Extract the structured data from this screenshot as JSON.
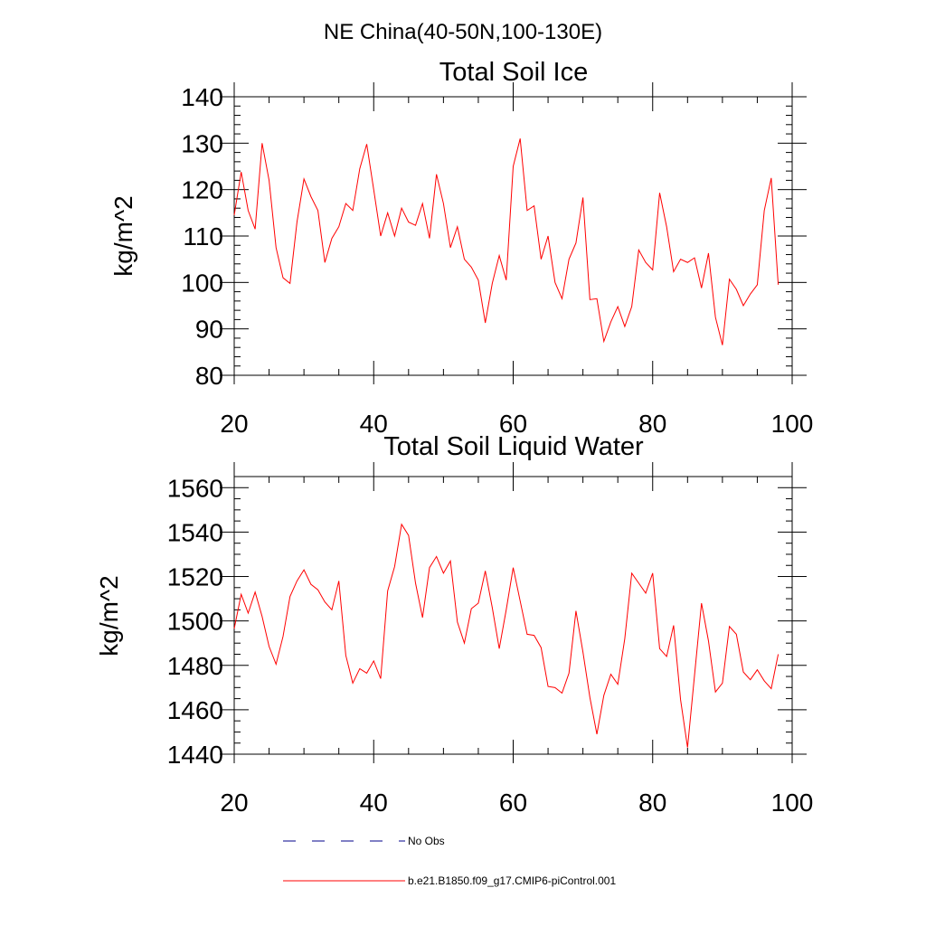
{
  "figure_title": "NE China(40-50N,100-130E)",
  "colors": {
    "model": "#ff0000",
    "obs": "#00008b",
    "axis": "#000000"
  },
  "legend": [
    {
      "label": "No Obs",
      "style": "dashed",
      "color": "#00008b"
    },
    {
      "label": "b.e21.B1850.f09_g17.CMIP6-piControl.001",
      "style": "solid",
      "color": "#ff0000"
    }
  ],
  "chart_data": [
    {
      "type": "line",
      "title": "Total Soil Ice",
      "xlabel": "",
      "ylabel": "kg/m^2",
      "xlim": [
        20,
        100
      ],
      "ylim": [
        80,
        140
      ],
      "xticks": [
        20,
        40,
        60,
        80,
        100
      ],
      "yticks": [
        80,
        90,
        100,
        110,
        120,
        130,
        140
      ],
      "x_minor_step": 5,
      "y_minor_step": 2,
      "series": [
        {
          "name": "b.e21.B1850.f09_g17.CMIP6-piControl.001",
          "x_start": 20,
          "x_step": 1,
          "values": [
            114.5,
            123.8,
            115.5,
            111.5,
            130.0,
            122.0,
            107.5,
            101.0,
            99.8,
            113.0,
            122.3,
            118.5,
            115.5,
            104.3,
            109.5,
            112.0,
            117.0,
            115.5,
            124.5,
            129.8,
            120.0,
            110.0,
            115.0,
            110.0,
            116.0,
            113.0,
            112.3,
            117.0,
            109.5,
            123.3,
            117.0,
            107.5,
            112.0,
            105.0,
            103.3,
            100.5,
            91.3,
            99.8,
            105.8,
            100.5,
            125.0,
            131.0,
            115.5,
            116.5,
            105.0,
            110.0,
            100.0,
            96.5,
            105.0,
            108.5,
            118.3,
            96.3,
            96.5,
            87.3,
            91.5,
            94.8,
            90.5,
            94.8,
            107.0,
            104.3,
            102.7,
            119.3,
            112.0,
            102.3,
            105.0,
            104.3,
            105.3,
            98.8,
            106.3,
            92.5,
            86.5,
            100.7,
            98.5,
            95.0,
            97.5,
            99.5,
            115.5,
            122.5,
            99.5
          ]
        }
      ]
    },
    {
      "type": "line",
      "title": "Total Soil Liquid Water",
      "xlabel": "",
      "ylabel": "kg/m^2",
      "xlim": [
        20,
        100
      ],
      "ylim": [
        1440,
        1565
      ],
      "xticks": [
        20,
        40,
        60,
        80,
        100
      ],
      "yticks": [
        1440,
        1460,
        1480,
        1500,
        1520,
        1540,
        1560
      ],
      "x_minor_step": 5,
      "y_minor_step": 5,
      "series": [
        {
          "name": "b.e21.B1850.f09_g17.CMIP6-piControl.001",
          "x_start": 20,
          "x_step": 1,
          "values": [
            1496.5,
            1512.0,
            1503.5,
            1513.0,
            1502.0,
            1488.5,
            1480.5,
            1493.0,
            1511.0,
            1518.0,
            1523.0,
            1516.5,
            1514.0,
            1508.5,
            1505.0,
            1518.0,
            1484.5,
            1472.0,
            1478.5,
            1476.5,
            1482.0,
            1474.0,
            1513.5,
            1524.5,
            1543.5,
            1538.5,
            1517.0,
            1501.5,
            1524.0,
            1529.0,
            1521.5,
            1527.0,
            1499.5,
            1490.0,
            1505.5,
            1508.0,
            1522.5,
            1506.0,
            1487.5,
            1505.0,
            1524.0,
            1509.0,
            1494.0,
            1493.5,
            1488.0,
            1470.5,
            1470.0,
            1467.5,
            1476.5,
            1504.5,
            1486.0,
            1465.5,
            1449.0,
            1466.5,
            1476.0,
            1471.5,
            1492.0,
            1521.5,
            1517.0,
            1512.5,
            1521.5,
            1487.5,
            1484.0,
            1498.0,
            1464.5,
            1443.0,
            1475.5,
            1508.0,
            1491.0,
            1468.0,
            1472.0,
            1497.5,
            1494.0,
            1477.0,
            1473.5,
            1478.0,
            1473.0,
            1469.5,
            1485.0
          ]
        }
      ]
    }
  ]
}
